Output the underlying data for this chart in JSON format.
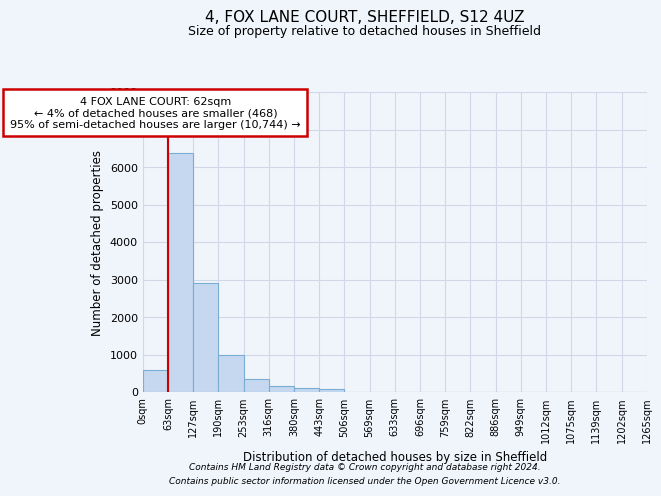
{
  "title": "4, FOX LANE COURT, SHEFFIELD, S12 4UZ",
  "subtitle": "Size of property relative to detached houses in Sheffield",
  "xlabel": "Distribution of detached houses by size in Sheffield",
  "ylabel": "Number of detached properties",
  "bar_values": [
    580,
    6380,
    2920,
    980,
    360,
    155,
    120,
    90,
    0,
    0,
    0,
    0,
    0,
    0,
    0,
    0,
    0,
    0,
    0,
    0
  ],
  "bar_labels": [
    "0sqm",
    "63sqm",
    "127sqm",
    "190sqm",
    "253sqm",
    "316sqm",
    "380sqm",
    "443sqm",
    "506sqm",
    "569sqm",
    "633sqm",
    "696sqm",
    "759sqm",
    "822sqm",
    "886sqm",
    "949sqm",
    "1012sqm",
    "1075sqm",
    "1139sqm",
    "1202sqm",
    "1265sqm"
  ],
  "bar_color": "#c5d8f0",
  "bar_edge_color": "#7aadd4",
  "red_line_x": 1,
  "ylim": [
    0,
    8000
  ],
  "yticks": [
    0,
    1000,
    2000,
    3000,
    4000,
    5000,
    6000,
    7000,
    8000
  ],
  "annotation_title": "4 FOX LANE COURT: 62sqm",
  "annotation_line1": "← 4% of detached houses are smaller (468)",
  "annotation_line2": "95% of semi-detached houses are larger (10,744) →",
  "annotation_box_color": "#ffffff",
  "annotation_box_edge": "#cc0000",
  "footer_line1": "Contains HM Land Registry data © Crown copyright and database right 2024.",
  "footer_line2": "Contains public sector information licensed under the Open Government Licence v3.0.",
  "background_color": "#f0f4fb",
  "plot_bg_color": "#f0f4fb",
  "grid_color": "#d0d8e8"
}
